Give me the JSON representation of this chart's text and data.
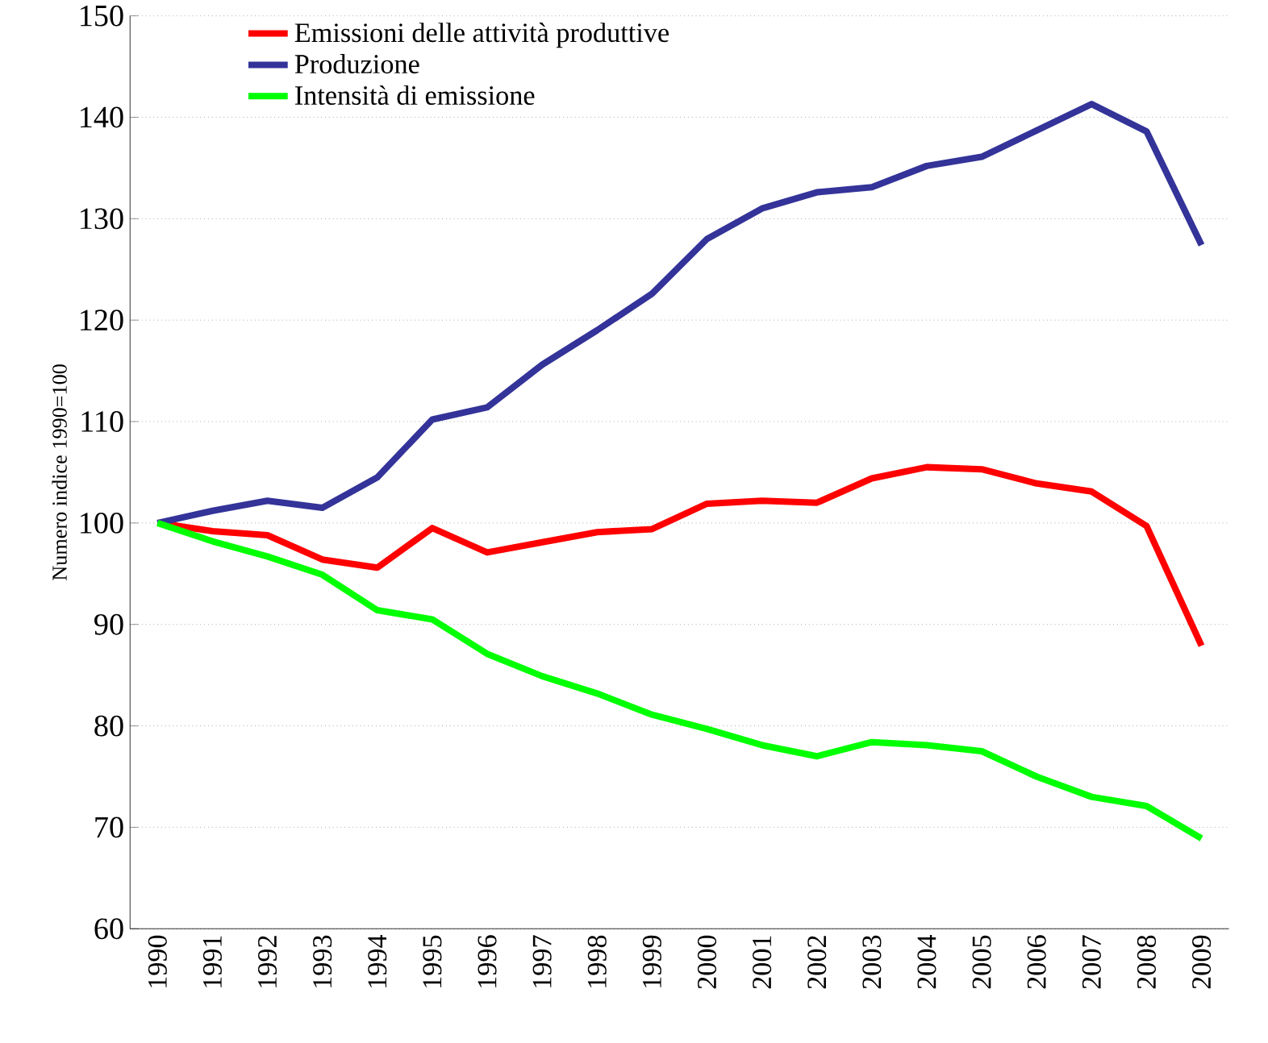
{
  "chart_data": {
    "type": "line",
    "ylabel": "Numero indice 1990=100",
    "categories": [
      "1990",
      "1991",
      "1992",
      "1993",
      "1994",
      "1995",
      "1996",
      "1997",
      "1998",
      "1999",
      "2000",
      "2001",
      "2002",
      "2003",
      "2004",
      "2005",
      "2006",
      "2007",
      "2008",
      "2009"
    ],
    "series": [
      {
        "name": "Emissioni delle attività produttive",
        "color": "#ff0000",
        "values": [
          100,
          99.2,
          98.8,
          96.4,
          95.6,
          99.5,
          97.1,
          98.1,
          99.1,
          99.4,
          101.9,
          102.2,
          102,
          104.4,
          105.5,
          105.3,
          103.9,
          103.1,
          99.7,
          87.9
        ]
      },
      {
        "name": "Produzione",
        "color": "#333399",
        "values": [
          100,
          101.2,
          102.2,
          101.5,
          104.5,
          110.2,
          111.4,
          115.6,
          119,
          122.6,
          128,
          131,
          132.6,
          133.1,
          135.2,
          136.1,
          138.7,
          141.3,
          138.6,
          127.4
        ]
      },
      {
        "name": "Intensità di emissione",
        "color": "#00ff00",
        "values": [
          100,
          98.2,
          96.7,
          94.9,
          91.4,
          90.5,
          87.1,
          84.9,
          83.2,
          81.1,
          79.7,
          78.1,
          77,
          78.4,
          78.1,
          77.5,
          75,
          73,
          72.1,
          68.9
        ]
      }
    ],
    "ylim": [
      60,
      150
    ],
    "yticks": [
      60,
      70,
      80,
      90,
      100,
      110,
      120,
      130,
      140,
      150
    ],
    "grid": "y",
    "legend": "top left",
    "marker": "none",
    "line_style": "solid"
  }
}
